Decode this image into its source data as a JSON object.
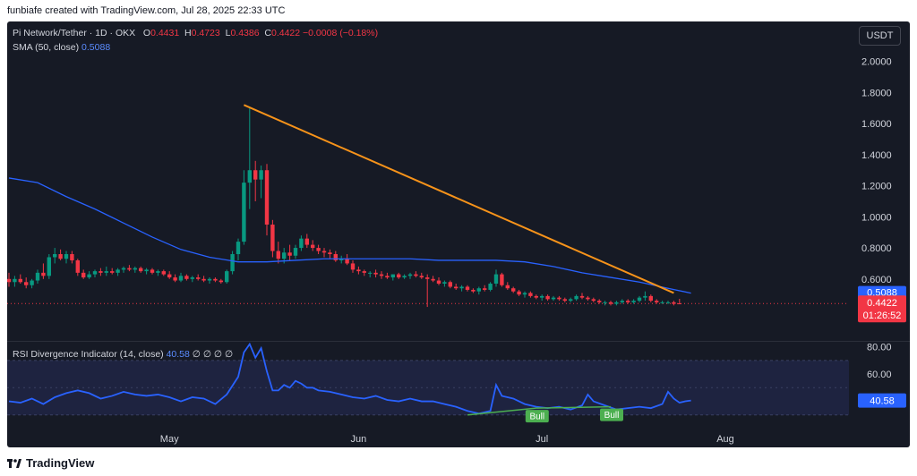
{
  "header": "funbiafe created with TradingView.com, Jul 28, 2025 22:33 UTC",
  "currency_button": "USDT",
  "footer_brand": "TradingView",
  "legend": {
    "symbol": "Pi Network/Tether · 1D · OKX",
    "o_label": "O",
    "o": "0.4431",
    "h_label": "H",
    "h": "0.4723",
    "l_label": "L",
    "l": "0.4386",
    "c_label": "C",
    "c": "0.4422",
    "change": "−0.0008 (−0.18%)",
    "sma_label": "SMA (50, close)",
    "sma": "0.5088",
    "rsi_label": "RSI Divergence Indicator (14, close)",
    "rsi": "40.58",
    "rsi_extra": "∅ ∅ ∅ ∅"
  },
  "colors": {
    "up": "#089981",
    "down": "#f23645",
    "sma": "#2962ff",
    "trendline": "#f7931a",
    "rsi": "#2962ff",
    "bull": "#4caf50"
  },
  "chart_data": [
    {
      "type": "candlestick",
      "title": "Pi Network/Tether · 1D · OKX",
      "x_ticks": [
        "May",
        "Jun",
        "Jul",
        "Aug"
      ],
      "y_ticks": [
        "0.6000",
        "0.8000",
        "1.0000",
        "1.2000",
        "1.4000",
        "1.6000",
        "1.8000",
        "2.0000"
      ],
      "ylim": [
        0.38,
        2.05
      ],
      "last_price": "0.4422",
      "sma_value": "0.5088",
      "countdown": "01:26:52",
      "candles": [
        [
          0.6,
          0.64,
          0.55,
          0.58
        ],
        [
          0.58,
          0.62,
          0.55,
          0.6
        ],
        [
          0.6,
          0.63,
          0.57,
          0.58
        ],
        [
          0.58,
          0.61,
          0.54,
          0.56
        ],
        [
          0.56,
          0.6,
          0.54,
          0.59
        ],
        [
          0.59,
          0.66,
          0.57,
          0.64
        ],
        [
          0.64,
          0.7,
          0.6,
          0.62
        ],
        [
          0.62,
          0.76,
          0.6,
          0.74
        ],
        [
          0.74,
          0.8,
          0.7,
          0.76
        ],
        [
          0.76,
          0.79,
          0.72,
          0.73
        ],
        [
          0.73,
          0.78,
          0.7,
          0.76
        ],
        [
          0.76,
          0.78,
          0.7,
          0.72
        ],
        [
          0.72,
          0.73,
          0.62,
          0.64
        ],
        [
          0.64,
          0.66,
          0.6,
          0.61
        ],
        [
          0.61,
          0.65,
          0.6,
          0.63
        ],
        [
          0.63,
          0.66,
          0.61,
          0.65
        ],
        [
          0.65,
          0.67,
          0.62,
          0.64
        ],
        [
          0.64,
          0.68,
          0.62,
          0.65
        ],
        [
          0.65,
          0.67,
          0.63,
          0.64
        ],
        [
          0.64,
          0.67,
          0.62,
          0.66
        ],
        [
          0.66,
          0.68,
          0.64,
          0.67
        ],
        [
          0.67,
          0.69,
          0.65,
          0.66
        ],
        [
          0.66,
          0.68,
          0.64,
          0.67
        ],
        [
          0.67,
          0.68,
          0.64,
          0.65
        ],
        [
          0.65,
          0.67,
          0.63,
          0.66
        ],
        [
          0.66,
          0.67,
          0.63,
          0.64
        ],
        [
          0.64,
          0.66,
          0.62,
          0.65
        ],
        [
          0.65,
          0.66,
          0.62,
          0.63
        ],
        [
          0.63,
          0.65,
          0.6,
          0.61
        ],
        [
          0.61,
          0.63,
          0.58,
          0.59
        ],
        [
          0.59,
          0.64,
          0.58,
          0.62
        ],
        [
          0.62,
          0.63,
          0.59,
          0.6
        ],
        [
          0.6,
          0.62,
          0.58,
          0.61
        ],
        [
          0.61,
          0.63,
          0.59,
          0.6
        ],
        [
          0.6,
          0.62,
          0.58,
          0.59
        ],
        [
          0.59,
          0.61,
          0.57,
          0.6
        ],
        [
          0.6,
          0.61,
          0.58,
          0.59
        ],
        [
          0.59,
          0.6,
          0.57,
          0.58
        ],
        [
          0.58,
          0.66,
          0.57,
          0.65
        ],
        [
          0.65,
          0.78,
          0.63,
          0.76
        ],
        [
          0.76,
          0.86,
          0.72,
          0.84
        ],
        [
          0.84,
          1.3,
          0.82,
          1.22
        ],
        [
          1.22,
          1.7,
          1.05,
          1.3
        ],
        [
          1.3,
          1.36,
          1.1,
          1.24
        ],
        [
          1.24,
          1.33,
          1.12,
          1.3
        ],
        [
          1.3,
          1.34,
          0.88,
          0.95
        ],
        [
          0.95,
          0.98,
          0.74,
          0.78
        ],
        [
          0.78,
          0.84,
          0.7,
          0.73
        ],
        [
          0.73,
          0.8,
          0.7,
          0.77
        ],
        [
          0.77,
          0.82,
          0.72,
          0.75
        ],
        [
          0.75,
          0.82,
          0.73,
          0.8
        ],
        [
          0.8,
          0.88,
          0.78,
          0.86
        ],
        [
          0.86,
          0.89,
          0.8,
          0.82
        ],
        [
          0.82,
          0.85,
          0.78,
          0.8
        ],
        [
          0.8,
          0.82,
          0.76,
          0.78
        ],
        [
          0.78,
          0.8,
          0.74,
          0.77
        ],
        [
          0.77,
          0.79,
          0.73,
          0.76
        ],
        [
          0.76,
          0.78,
          0.71,
          0.72
        ],
        [
          0.72,
          0.75,
          0.7,
          0.73
        ],
        [
          0.73,
          0.76,
          0.69,
          0.7
        ],
        [
          0.7,
          0.72,
          0.64,
          0.66
        ],
        [
          0.66,
          0.68,
          0.63,
          0.65
        ],
        [
          0.65,
          0.66,
          0.62,
          0.64
        ],
        [
          0.64,
          0.65,
          0.61,
          0.64
        ],
        [
          0.64,
          0.66,
          0.61,
          0.63
        ],
        [
          0.63,
          0.65,
          0.6,
          0.62
        ],
        [
          0.62,
          0.64,
          0.6,
          0.61
        ],
        [
          0.61,
          0.63,
          0.59,
          0.63
        ],
        [
          0.63,
          0.64,
          0.6,
          0.61
        ],
        [
          0.61,
          0.63,
          0.6,
          0.62
        ],
        [
          0.62,
          0.64,
          0.6,
          0.63
        ],
        [
          0.63,
          0.65,
          0.61,
          0.62
        ],
        [
          0.62,
          0.64,
          0.6,
          0.61
        ],
        [
          0.61,
          0.63,
          0.42,
          0.6
        ],
        [
          0.6,
          0.62,
          0.58,
          0.59
        ],
        [
          0.59,
          0.61,
          0.56,
          0.57
        ],
        [
          0.57,
          0.59,
          0.55,
          0.58
        ],
        [
          0.58,
          0.59,
          0.54,
          0.55
        ],
        [
          0.55,
          0.57,
          0.53,
          0.54
        ],
        [
          0.54,
          0.56,
          0.52,
          0.55
        ],
        [
          0.55,
          0.56,
          0.52,
          0.53
        ],
        [
          0.53,
          0.54,
          0.51,
          0.52
        ],
        [
          0.52,
          0.55,
          0.5,
          0.54
        ],
        [
          0.54,
          0.56,
          0.52,
          0.53
        ],
        [
          0.53,
          0.58,
          0.52,
          0.57
        ],
        [
          0.57,
          0.66,
          0.55,
          0.63
        ],
        [
          0.63,
          0.64,
          0.55,
          0.56
        ],
        [
          0.56,
          0.58,
          0.53,
          0.54
        ],
        [
          0.54,
          0.55,
          0.51,
          0.52
        ],
        [
          0.52,
          0.53,
          0.49,
          0.5
        ],
        [
          0.5,
          0.52,
          0.48,
          0.51
        ],
        [
          0.51,
          0.52,
          0.48,
          0.49
        ],
        [
          0.49,
          0.5,
          0.47,
          0.48
        ],
        [
          0.48,
          0.5,
          0.46,
          0.49
        ],
        [
          0.49,
          0.5,
          0.46,
          0.47
        ],
        [
          0.47,
          0.49,
          0.46,
          0.48
        ],
        [
          0.48,
          0.49,
          0.46,
          0.47
        ],
        [
          0.47,
          0.48,
          0.45,
          0.46
        ],
        [
          0.46,
          0.48,
          0.45,
          0.47
        ],
        [
          0.47,
          0.5,
          0.46,
          0.49
        ],
        [
          0.49,
          0.51,
          0.47,
          0.48
        ],
        [
          0.48,
          0.49,
          0.46,
          0.47
        ],
        [
          0.47,
          0.48,
          0.45,
          0.46
        ],
        [
          0.46,
          0.47,
          0.44,
          0.45
        ],
        [
          0.45,
          0.46,
          0.43,
          0.45
        ],
        [
          0.45,
          0.46,
          0.43,
          0.44
        ],
        [
          0.44,
          0.46,
          0.43,
          0.45
        ],
        [
          0.45,
          0.47,
          0.44,
          0.46
        ],
        [
          0.46,
          0.47,
          0.44,
          0.45
        ],
        [
          0.45,
          0.47,
          0.44,
          0.46
        ],
        [
          0.46,
          0.49,
          0.45,
          0.48
        ],
        [
          0.48,
          0.52,
          0.46,
          0.49
        ],
        [
          0.49,
          0.5,
          0.45,
          0.46
        ],
        [
          0.46,
          0.47,
          0.44,
          0.45
        ],
        [
          0.45,
          0.46,
          0.44,
          0.45
        ],
        [
          0.45,
          0.46,
          0.44,
          0.45
        ],
        [
          0.45,
          0.46,
          0.43,
          0.44
        ],
        [
          0.4431,
          0.4723,
          0.4386,
          0.4422
        ]
      ],
      "sma": [
        [
          0,
          1.25
        ],
        [
          5,
          1.22
        ],
        [
          10,
          1.13
        ],
        [
          15,
          1.05
        ],
        [
          20,
          0.96
        ],
        [
          25,
          0.87
        ],
        [
          30,
          0.79
        ],
        [
          35,
          0.74
        ],
        [
          40,
          0.71
        ],
        [
          45,
          0.71
        ],
        [
          50,
          0.72
        ],
        [
          55,
          0.73
        ],
        [
          60,
          0.73
        ],
        [
          65,
          0.73
        ],
        [
          70,
          0.73
        ],
        [
          75,
          0.72
        ],
        [
          80,
          0.72
        ],
        [
          85,
          0.72
        ],
        [
          90,
          0.71
        ],
        [
          95,
          0.68
        ],
        [
          100,
          0.64
        ],
        [
          105,
          0.61
        ],
        [
          110,
          0.58
        ],
        [
          115,
          0.54
        ],
        [
          119,
          0.5088
        ]
      ],
      "trendline": [
        [
          41,
          1.72
        ],
        [
          116,
          0.51
        ]
      ]
    },
    {
      "type": "line",
      "title": "RSI Divergence Indicator (14, close)",
      "y_ticks": [
        "60.00",
        "80.00"
      ],
      "ylim": [
        20,
        85
      ],
      "last_value": "40.58",
      "rsi": [
        [
          0,
          40
        ],
        [
          2,
          39
        ],
        [
          4,
          42
        ],
        [
          6,
          38
        ],
        [
          8,
          43
        ],
        [
          10,
          46
        ],
        [
          12,
          48
        ],
        [
          14,
          46
        ],
        [
          16,
          42
        ],
        [
          18,
          44
        ],
        [
          20,
          47
        ],
        [
          22,
          45
        ],
        [
          24,
          44
        ],
        [
          26,
          45
        ],
        [
          28,
          43
        ],
        [
          30,
          40
        ],
        [
          32,
          43
        ],
        [
          34,
          42
        ],
        [
          36,
          38
        ],
        [
          38,
          45
        ],
        [
          40,
          58
        ],
        [
          41,
          76
        ],
        [
          42,
          82
        ],
        [
          43,
          72
        ],
        [
          44,
          79
        ],
        [
          45,
          62
        ],
        [
          46,
          48
        ],
        [
          47,
          48
        ],
        [
          48,
          52
        ],
        [
          49,
          50
        ],
        [
          50,
          55
        ],
        [
          51,
          53
        ],
        [
          52,
          50
        ],
        [
          53,
          50
        ],
        [
          54,
          48
        ],
        [
          56,
          47
        ],
        [
          58,
          45
        ],
        [
          60,
          43
        ],
        [
          62,
          42
        ],
        [
          64,
          44
        ],
        [
          66,
          41
        ],
        [
          68,
          40
        ],
        [
          70,
          42
        ],
        [
          72,
          40
        ],
        [
          74,
          40
        ],
        [
          76,
          38
        ],
        [
          78,
          36
        ],
        [
          80,
          33
        ],
        [
          82,
          31
        ],
        [
          84,
          33
        ],
        [
          85,
          52
        ],
        [
          86,
          44
        ],
        [
          88,
          42
        ],
        [
          90,
          38
        ],
        [
          92,
          36
        ],
        [
          94,
          35
        ],
        [
          96,
          36
        ],
        [
          98,
          34
        ],
        [
          100,
          37
        ],
        [
          101,
          45
        ],
        [
          102,
          40
        ],
        [
          104,
          37
        ],
        [
          106,
          34
        ],
        [
          108,
          35
        ],
        [
          110,
          36
        ],
        [
          112,
          35
        ],
        [
          114,
          38
        ],
        [
          115,
          47
        ],
        [
          116,
          42
        ],
        [
          117,
          39
        ],
        [
          118,
          40
        ],
        [
          119,
          40.58
        ]
      ],
      "divergences": [
        {
          "label": "Bull",
          "from": [
            80,
            30
          ],
          "to": [
            92,
            35
          ]
        },
        {
          "label": "Bull",
          "from": [
            92,
            35
          ],
          "to": [
            105,
            36
          ]
        }
      ]
    }
  ]
}
